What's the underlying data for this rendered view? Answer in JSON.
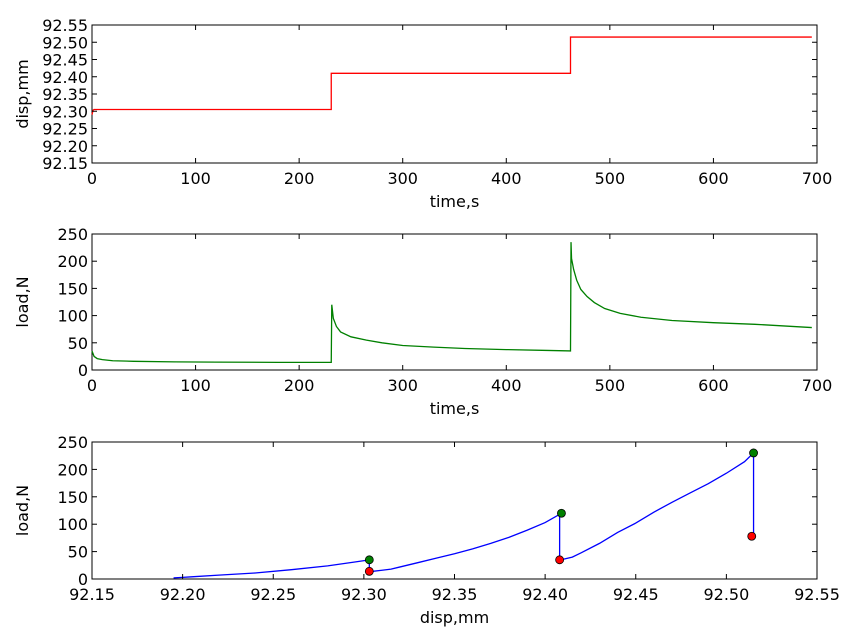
{
  "chart_data": [
    {
      "type": "line",
      "xlabel": "time,s",
      "ylabel": "disp,mm",
      "xlim": [
        0,
        700
      ],
      "ylim": [
        92.15,
        92.55
      ],
      "xticks": [
        0,
        100,
        200,
        300,
        400,
        500,
        600,
        700
      ],
      "xtick_labels": [
        "0",
        "100",
        "200",
        "300",
        "400",
        "500",
        "600",
        "700"
      ],
      "yticks": [
        92.15,
        92.2,
        92.25,
        92.3,
        92.35,
        92.4,
        92.45,
        92.5,
        92.55
      ],
      "ytick_labels": [
        "92.15",
        "92.20",
        "92.25",
        "92.30",
        "92.35",
        "92.40",
        "92.45",
        "92.50",
        "92.55"
      ],
      "grid": false,
      "series": [
        {
          "color": "#ff0000",
          "x": [
            0,
            1,
            2,
            231,
            231,
            462,
            462,
            695
          ],
          "y": [
            92.29,
            92.303,
            92.305,
            92.305,
            92.41,
            92.41,
            92.515,
            92.515
          ]
        }
      ]
    },
    {
      "type": "line",
      "xlabel": "time,s",
      "ylabel": "load,N",
      "xlim": [
        0,
        700
      ],
      "ylim": [
        0,
        250
      ],
      "xticks": [
        0,
        100,
        200,
        300,
        400,
        500,
        600,
        700
      ],
      "xtick_labels": [
        "0",
        "100",
        "200",
        "300",
        "400",
        "500",
        "600",
        "700"
      ],
      "yticks": [
        0,
        50,
        100,
        150,
        200,
        250
      ],
      "ytick_labels": [
        "0",
        "50",
        "100",
        "150",
        "200",
        "250"
      ],
      "grid": false,
      "series": [
        {
          "color": "#008000",
          "x": [
            0,
            2,
            5,
            10,
            20,
            40,
            80,
            120,
            180,
            230,
            231,
            231.5,
            233,
            236,
            240,
            250,
            265,
            280,
            300,
            330,
            360,
            400,
            440,
            462,
            462.5,
            463,
            465,
            468,
            472,
            478,
            485,
            495,
            510,
            530,
            560,
            600,
            640,
            695
          ],
          "y": [
            35,
            25,
            21,
            19,
            17,
            16,
            15,
            14.5,
            14,
            14,
            14,
            120,
            95,
            80,
            70,
            61,
            55,
            50,
            45,
            42,
            39.5,
            37.5,
            36,
            35,
            235,
            205,
            185,
            165,
            148,
            135,
            124,
            113,
            104,
            97,
            91,
            87,
            84,
            78
          ]
        }
      ]
    },
    {
      "type": "line",
      "xlabel": "disp,mm",
      "ylabel": "load,N",
      "xlim": [
        92.15,
        92.55
      ],
      "ylim": [
        0,
        250
      ],
      "xticks": [
        92.15,
        92.2,
        92.25,
        92.3,
        92.35,
        92.4,
        92.45,
        92.5,
        92.55
      ],
      "xtick_labels": [
        "92.15",
        "92.20",
        "92.25",
        "92.30",
        "92.35",
        "92.40",
        "92.45",
        "92.50",
        "92.55"
      ],
      "yticks": [
        0,
        50,
        100,
        150,
        200,
        250
      ],
      "ytick_labels": [
        "0",
        "50",
        "100",
        "150",
        "200",
        "250"
      ],
      "grid": false,
      "series": [
        {
          "color": "#0000ff",
          "x": [
            92.195,
            92.2,
            92.205,
            92.22,
            92.24,
            92.26,
            92.28,
            92.295,
            92.303,
            92.303,
            92.305,
            92.31,
            92.315,
            92.32,
            92.33,
            92.34,
            92.35,
            92.36,
            92.37,
            92.38,
            92.39,
            92.4,
            92.408,
            92.408,
            92.409,
            92.41,
            92.415,
            92.42,
            92.43,
            92.44,
            92.45,
            92.46,
            92.47,
            92.48,
            92.49,
            92.5,
            92.51,
            92.515,
            92.515,
            92.516
          ],
          "y": [
            2,
            3,
            4,
            7,
            11,
            17,
            24,
            31,
            35,
            14,
            14,
            16,
            18,
            22,
            30,
            38,
            46,
            55,
            65,
            76,
            89,
            103,
            118,
            38,
            35,
            36,
            40,
            48,
            65,
            85,
            102,
            122,
            140,
            157,
            174,
            193,
            214,
            230,
            80,
            78
          ]
        }
      ],
      "markers": [
        {
          "x": 92.303,
          "y": 35,
          "color": "#008000"
        },
        {
          "x": 92.303,
          "y": 14,
          "color": "#ff0000"
        },
        {
          "x": 92.409,
          "y": 120,
          "color": "#008000"
        },
        {
          "x": 92.408,
          "y": 35,
          "color": "#ff0000"
        },
        {
          "x": 92.515,
          "y": 230,
          "color": "#008000"
        },
        {
          "x": 92.514,
          "y": 78,
          "color": "#ff0000"
        }
      ]
    }
  ]
}
